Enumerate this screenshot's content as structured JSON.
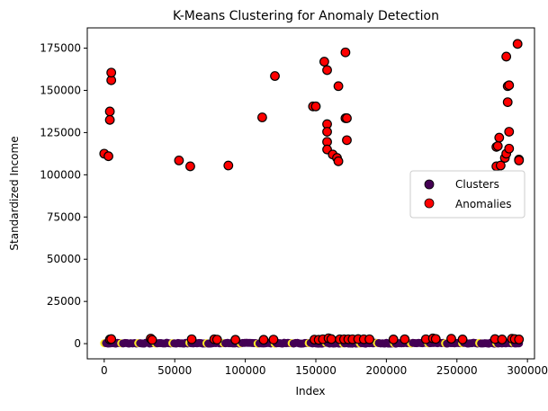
{
  "chart_data": {
    "type": "scatter",
    "title": "K-Means Clustering for Anomaly Detection",
    "xlabel": "Index",
    "ylabel": "Standardized Income",
    "xlim": [
      -12000,
      305000
    ],
    "ylim": [
      -9000,
      187000
    ],
    "xticks": [
      0,
      50000,
      100000,
      150000,
      200000,
      250000,
      300000
    ],
    "yticks": [
      0,
      25000,
      50000,
      75000,
      100000,
      125000,
      150000,
      175000
    ],
    "legend": {
      "position": "right",
      "entries": [
        "Clusters",
        "Anomalies"
      ]
    },
    "colors": {
      "clusters": "#440154",
      "clusters_alt": "#fde725",
      "anomalies": "#ff0000",
      "edge": "#000000"
    },
    "series": [
      {
        "name": "Clusters",
        "x_range": [
          0,
          294000
        ],
        "y_range": [
          0,
          3500
        ],
        "note_count": 220
      },
      {
        "name": "Anomalies",
        "points": [
          [
            0,
            112500
          ],
          [
            3000,
            111000
          ],
          [
            4000,
            137500
          ],
          [
            4000,
            132500
          ],
          [
            5000,
            156000
          ],
          [
            5000,
            160500
          ],
          [
            4000,
            2500
          ],
          [
            5000,
            2700
          ],
          [
            33000,
            3000
          ],
          [
            34000,
            2200
          ],
          [
            53000,
            108500
          ],
          [
            61000,
            105000
          ],
          [
            62000,
            2600
          ],
          [
            78000,
            2600
          ],
          [
            80000,
            2400
          ],
          [
            88000,
            105500
          ],
          [
            93000,
            2300
          ],
          [
            112000,
            134000
          ],
          [
            113000,
            2300
          ],
          [
            120000,
            2400
          ],
          [
            121000,
            158500
          ],
          [
            148000,
            140500
          ],
          [
            150000,
            140500
          ],
          [
            149000,
            2400
          ],
          [
            152000,
            2300
          ],
          [
            155000,
            2600
          ],
          [
            156000,
            167000
          ],
          [
            158000,
            162000
          ],
          [
            158000,
            130000
          ],
          [
            158000,
            125500
          ],
          [
            158000,
            119500
          ],
          [
            158000,
            115000
          ],
          [
            159000,
            3200
          ],
          [
            161000,
            2700
          ],
          [
            162000,
            112000
          ],
          [
            165000,
            110000
          ],
          [
            166000,
            152500
          ],
          [
            166000,
            108000
          ],
          [
            167000,
            2600
          ],
          [
            170000,
            2600
          ],
          [
            171000,
            172500
          ],
          [
            171000,
            133500
          ],
          [
            172000,
            133500
          ],
          [
            172000,
            120500
          ],
          [
            173000,
            2600
          ],
          [
            176000,
            2600
          ],
          [
            180000,
            2700
          ],
          [
            184000,
            2600
          ],
          [
            188000,
            2600
          ],
          [
            205000,
            2500
          ],
          [
            213000,
            2600
          ],
          [
            228000,
            2600
          ],
          [
            233000,
            3100
          ],
          [
            235000,
            2800
          ],
          [
            246000,
            2900
          ],
          [
            254000,
            2500
          ],
          [
            277000,
            2700
          ],
          [
            278000,
            105000
          ],
          [
            278000,
            116500
          ],
          [
            279000,
            117000
          ],
          [
            280000,
            122000
          ],
          [
            281000,
            105500
          ],
          [
            282000,
            2500
          ],
          [
            284000,
            110000
          ],
          [
            285000,
            112500
          ],
          [
            285000,
            170000
          ],
          [
            286000,
            143000
          ],
          [
            286000,
            152500
          ],
          [
            287000,
            153000
          ],
          [
            287000,
            125500
          ],
          [
            287000,
            115500
          ],
          [
            289000,
            2900
          ],
          [
            291000,
            2700
          ],
          [
            293000,
            177500
          ],
          [
            294000,
            109000
          ],
          [
            294000,
            108500
          ],
          [
            294000,
            2500
          ]
        ]
      }
    ]
  }
}
